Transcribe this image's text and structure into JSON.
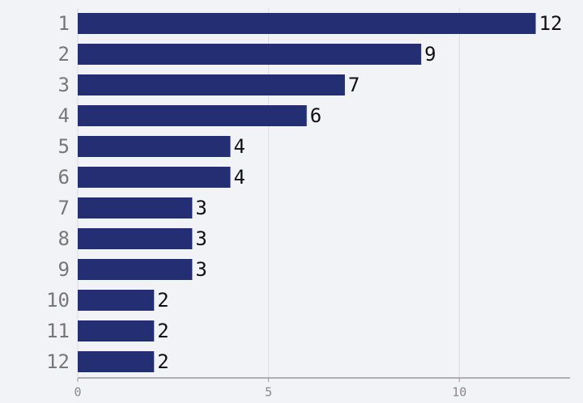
{
  "chart_data": {
    "type": "bar",
    "orientation": "horizontal",
    "categories": [
      "1",
      "2",
      "3",
      "4",
      "5",
      "6",
      "7",
      "8",
      "9",
      "10",
      "11",
      "12"
    ],
    "values": [
      12,
      9,
      7,
      6,
      4,
      4,
      3,
      3,
      3,
      2,
      2,
      2
    ],
    "color": "#232f72",
    "xlim": [
      0,
      12.9
    ],
    "xticks": [
      0,
      5,
      10
    ],
    "grid": true
  }
}
